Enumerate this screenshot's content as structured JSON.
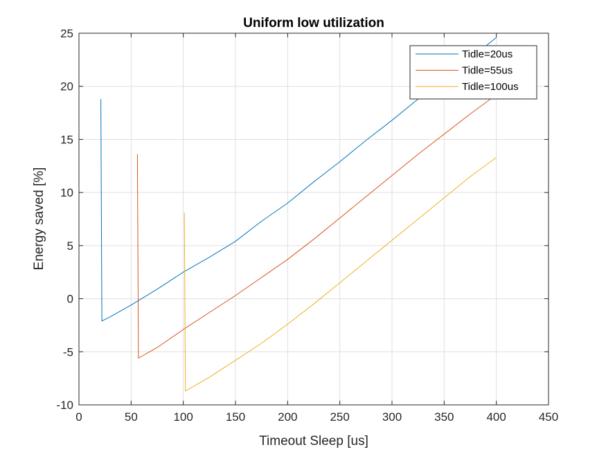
{
  "chart_data": {
    "type": "line",
    "title": "Uniform low utilization",
    "xlabel": "Timeout Sleep [us]",
    "ylabel": "Energy saved [%]",
    "xlim": [
      0,
      450
    ],
    "ylim": [
      -10,
      25
    ],
    "xticks": [
      0,
      50,
      100,
      150,
      200,
      250,
      300,
      350,
      400,
      450
    ],
    "yticks": [
      -10,
      -5,
      0,
      5,
      10,
      15,
      20,
      25
    ],
    "grid": true,
    "legend_position": "top-right",
    "series": [
      {
        "name": "Tidle=20us",
        "color": "#0072BD",
        "x": [
          21,
          22,
          30,
          50,
          75,
          100,
          125,
          150,
          175,
          200,
          225,
          250,
          275,
          300,
          325,
          350,
          375,
          400
        ],
        "y": [
          18.8,
          -2.1,
          -1.7,
          -0.6,
          0.9,
          2.5,
          3.9,
          5.4,
          7.3,
          9.0,
          11.0,
          12.9,
          14.9,
          16.8,
          18.8,
          20.6,
          22.6,
          24.6
        ]
      },
      {
        "name": "Tidle=55us",
        "color": "#D95319",
        "x": [
          56,
          57,
          75,
          100,
          125,
          150,
          175,
          200,
          225,
          250,
          275,
          300,
          325,
          350,
          375,
          400
        ],
        "y": [
          13.6,
          -5.6,
          -4.6,
          -2.9,
          -1.3,
          0.3,
          2.0,
          3.7,
          5.6,
          7.6,
          9.6,
          11.6,
          13.6,
          15.5,
          17.4,
          19.2
        ]
      },
      {
        "name": "Tidle=100us",
        "color": "#EDB120",
        "x": [
          101,
          102,
          125,
          150,
          175,
          200,
          225,
          250,
          275,
          300,
          325,
          350,
          375,
          400
        ],
        "y": [
          8.1,
          -8.7,
          -7.4,
          -5.8,
          -4.2,
          -2.4,
          -0.5,
          1.5,
          3.5,
          5.5,
          7.5,
          9.5,
          11.5,
          13.3
        ]
      }
    ]
  }
}
